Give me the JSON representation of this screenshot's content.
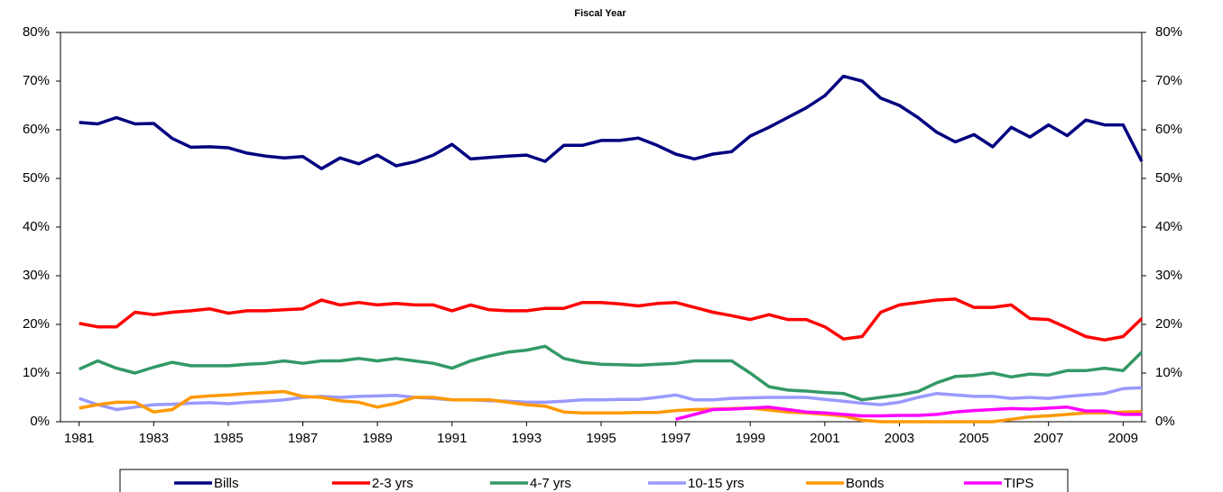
{
  "chart_data": {
    "type": "line",
    "title": "Fiscal Year",
    "x": [
      1981,
      1981.5,
      1982,
      1982.5,
      1983,
      1983.5,
      1984,
      1984.5,
      1985,
      1985.5,
      1986,
      1986.5,
      1987,
      1987.5,
      1988,
      1988.5,
      1989,
      1989.5,
      1990,
      1990.5,
      1991,
      1991.5,
      1992,
      1992.5,
      1993,
      1993.5,
      1994,
      1994.5,
      1995,
      1995.5,
      1996,
      1996.5,
      1997,
      1997.5,
      1998,
      1998.5,
      1999,
      1999.5,
      2000,
      2000.5,
      2001,
      2001.5,
      2002,
      2002.5,
      2003,
      2003.5,
      2004,
      2004.5,
      2005,
      2005.5,
      2006,
      2006.5,
      2007,
      2007.5,
      2008,
      2008.5,
      2009,
      2009.5
    ],
    "xlim": [
      1980.5,
      2009.5
    ],
    "xticks": [
      1981,
      1983,
      1985,
      1987,
      1989,
      1991,
      1993,
      1995,
      1997,
      1999,
      2001,
      2003,
      2005,
      2007,
      2009
    ],
    "ylim": [
      0,
      80
    ],
    "yticks": [
      {
        "value": 0,
        "label": "0%"
      },
      {
        "value": 10,
        "label": "10%"
      },
      {
        "value": 20,
        "label": "20%"
      },
      {
        "value": 30,
        "label": "30%"
      },
      {
        "value": 40,
        "label": "40%"
      },
      {
        "value": 50,
        "label": "50%"
      },
      {
        "value": 60,
        "label": "60%"
      },
      {
        "value": 70,
        "label": "70%"
      },
      {
        "value": 80,
        "label": "80%"
      }
    ],
    "y2lim": [
      0,
      80
    ],
    "y2ticks": [
      {
        "value": 0,
        "label": "0%"
      },
      {
        "value": 10,
        "label": "10%"
      },
      {
        "value": 20,
        "label": "20%"
      },
      {
        "value": 30,
        "label": "30%"
      },
      {
        "value": 40,
        "label": "40%"
      },
      {
        "value": 50,
        "label": "50%"
      },
      {
        "value": 60,
        "label": "60%"
      },
      {
        "value": 70,
        "label": "70%"
      },
      {
        "value": 80,
        "label": "80%"
      }
    ],
    "legend": "bottom",
    "series": [
      {
        "name": "Bills",
        "color": "#000080",
        "values": [
          61.5,
          61.2,
          62.5,
          61.2,
          61.3,
          58.2,
          56.4,
          56.5,
          56.3,
          55.2,
          54.6,
          54.2,
          54.5,
          52,
          54.2,
          53,
          54.8,
          52.6,
          53.4,
          54.8,
          57,
          54,
          54.3,
          54.6,
          54.8,
          53.5,
          56.8,
          56.8,
          57.8,
          57.8,
          58.3,
          56.8,
          55,
          54,
          55,
          55.5,
          58.7,
          60.5,
          62.5,
          64.5,
          67,
          71,
          70,
          66.5,
          65,
          62.5,
          59.5,
          57.5,
          59,
          56.5,
          60.5,
          58.5,
          61,
          58.8,
          62,
          61,
          61,
          53.5
        ]
      },
      {
        "name": "2-3 yrs",
        "color": "#ff0000",
        "values": [
          20.2,
          19.5,
          19.5,
          22.5,
          22,
          22.5,
          22.8,
          23.2,
          22.3,
          22.8,
          22.8,
          23,
          23.2,
          25,
          24,
          24.5,
          24,
          24.3,
          24,
          24,
          22.8,
          24,
          23,
          22.8,
          22.8,
          23.3,
          23.3,
          24.5,
          24.5,
          24.2,
          23.8,
          24.3,
          24.5,
          23.5,
          22.5,
          21.8,
          21,
          22,
          21,
          21,
          19.5,
          17,
          17.5,
          22.5,
          24,
          24.5,
          25,
          25.2,
          23.5,
          23.5,
          24,
          21.2,
          21,
          19.3,
          17.5,
          16.8,
          17.5,
          21.2
        ]
      },
      {
        "name": "4-7 yrs",
        "color": "#339966",
        "values": [
          10.8,
          12.5,
          11,
          10,
          11.2,
          12.2,
          11.5,
          11.5,
          11.5,
          11.8,
          12,
          12.5,
          12,
          12.5,
          12.5,
          13,
          12.5,
          13,
          12.5,
          12,
          11,
          12.5,
          13.5,
          14.3,
          14.7,
          15.5,
          13,
          12.2,
          11.8,
          11.7,
          11.6,
          11.8,
          12,
          12.5,
          12.5,
          12.5,
          10,
          7.2,
          6.5,
          6.3,
          6,
          5.8,
          4.5,
          5,
          5.5,
          6.2,
          8,
          9.3,
          9.5,
          10,
          9.2,
          9.8,
          9.6,
          10.5,
          10.5,
          11,
          10.5,
          14.3
        ]
      },
      {
        "name": "10-15 yrs",
        "color": "#9999ff",
        "values": [
          4.8,
          3.5,
          2.5,
          3,
          3.5,
          3.6,
          3.8,
          3.9,
          3.7,
          4,
          4.2,
          4.5,
          5,
          5.2,
          5,
          5.2,
          5.3,
          5.4,
          5,
          4.8,
          4.5,
          4.5,
          4.3,
          4.2,
          4,
          4,
          4.2,
          4.5,
          4.5,
          4.6,
          4.6,
          5,
          5.5,
          4.5,
          4.5,
          4.8,
          4.9,
          5,
          5,
          5,
          4.6,
          4.2,
          3.8,
          3.5,
          4,
          5,
          5.8,
          5.5,
          5.2,
          5.2,
          4.8,
          5,
          4.8,
          5.2,
          5.5,
          5.8,
          6.8,
          7
        ]
      },
      {
        "name": "Bonds",
        "color": "#ff9900",
        "values": [
          2.8,
          3.5,
          4,
          4,
          2,
          2.5,
          5,
          5.3,
          5.5,
          5.8,
          6,
          6.2,
          5.2,
          5,
          4.3,
          4,
          3,
          3.8,
          5,
          5,
          4.5,
          4.5,
          4.5,
          4,
          3.5,
          3.2,
          2,
          1.8,
          1.8,
          1.8,
          1.9,
          1.9,
          2.3,
          2.5,
          2.6,
          2.7,
          2.8,
          2.4,
          2,
          1.8,
          1.5,
          1.2,
          0.3,
          0,
          0,
          0,
          0,
          0,
          0,
          0,
          0.5,
          1,
          1.2,
          1.5,
          1.8,
          1.8,
          2,
          2.1
        ]
      },
      {
        "name": "TIPS",
        "color": "#ff00ff",
        "values": [
          null,
          null,
          null,
          null,
          null,
          null,
          null,
          null,
          null,
          null,
          null,
          null,
          null,
          null,
          null,
          null,
          null,
          null,
          null,
          null,
          null,
          null,
          null,
          null,
          null,
          null,
          null,
          null,
          null,
          null,
          null,
          null,
          0.5,
          1.5,
          2.5,
          2.6,
          2.8,
          3,
          2.5,
          2,
          1.8,
          1.5,
          1.2,
          1.2,
          1.3,
          1.3,
          1.5,
          2,
          2.3,
          2.5,
          2.7,
          2.6,
          2.8,
          3,
          2.2,
          2.2,
          1.5,
          1.5
        ]
      }
    ]
  }
}
